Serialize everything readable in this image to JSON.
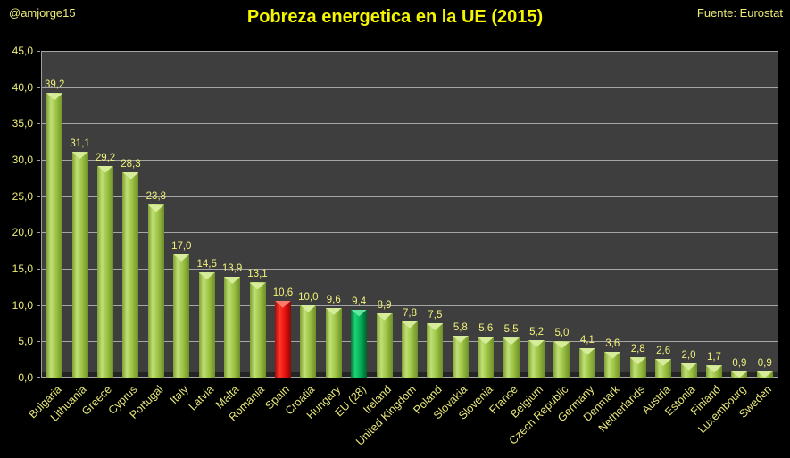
{
  "header": {
    "credit": "@amjorge15",
    "title": "Pobreza energetica en la UE (2015)",
    "source": "Fuente: Eurostat"
  },
  "colors": {
    "page_bg": "#000000",
    "plot_bg": "#3e3e3e",
    "gridline": "#a6a6a6",
    "axis_line": "#9f9f9f",
    "title_text": "#f5f500",
    "label_text": "#ecec79",
    "bar_styles": {
      "default": {
        "edge_left": "#7d9f31",
        "highlight": "#c0e076",
        "mid": "#9cc243",
        "edge_right": "#6d8f2a",
        "cap": "#d7ec9b"
      },
      "spain": {
        "edge_left": "#a30b0b",
        "highlight": "#ff392b",
        "mid": "#ea0f0f",
        "edge_right": "#8a0808",
        "cap": "#ff7a6a"
      },
      "eu": {
        "edge_left": "#007a3c",
        "highlight": "#21d276",
        "mid": "#00ab53",
        "edge_right": "#00602f",
        "cap": "#62e6a0"
      }
    }
  },
  "chart_data": {
    "type": "bar",
    "title": "Pobreza energetica en la UE (2015)",
    "xlabel": "",
    "ylabel": "",
    "ylim": [
      0,
      45
    ],
    "grid": true,
    "legend": false,
    "categories": [
      "Bulgaria",
      "Lithuania",
      "Greece",
      "Cyprus",
      "Portugal",
      "Italy",
      "Latvia",
      "Malta",
      "Romania",
      "Spain",
      "Croatia",
      "Hungary",
      "EU (28)",
      "Ireland",
      "United Kingdom",
      "Poland",
      "Slovakia",
      "Slovenia",
      "France",
      "Belgium",
      "Czech Republic",
      "Germany",
      "Denmark",
      "Netherlands",
      "Austria",
      "Estonia",
      "Finland",
      "Luxembourg",
      "Sweden"
    ],
    "values": [
      39.2,
      31.1,
      29.2,
      28.3,
      23.8,
      17.0,
      14.5,
      13.9,
      13.1,
      10.6,
      10.0,
      9.6,
      9.4,
      8.9,
      7.8,
      7.5,
      5.8,
      5.6,
      5.5,
      5.2,
      5.0,
      4.1,
      3.6,
      2.8,
      2.6,
      2.0,
      1.7,
      0.9,
      0.9
    ],
    "value_labels": [
      "39,2",
      "31,1",
      "29,2",
      "28,3",
      "23,8",
      "17,0",
      "14,5",
      "13,9",
      "13,1",
      "10,6",
      "10,0",
      "9,6",
      "9,4",
      "8,9",
      "7,8",
      "7,5",
      "5,8",
      "5,6",
      "5,5",
      "5,2",
      "5,0",
      "4,1",
      "3,6",
      "2,8",
      "2,6",
      "2,0",
      "1,7",
      "0,9",
      "0,9"
    ],
    "bar_styles": [
      "default",
      "default",
      "default",
      "default",
      "default",
      "default",
      "default",
      "default",
      "default",
      "spain",
      "default",
      "default",
      "eu",
      "default",
      "default",
      "default",
      "default",
      "default",
      "default",
      "default",
      "default",
      "default",
      "default",
      "default",
      "default",
      "default",
      "default",
      "default",
      "default"
    ],
    "yticks": [
      {
        "value": 45,
        "label": "45,0"
      },
      {
        "value": 40,
        "label": "40,0"
      },
      {
        "value": 35,
        "label": "35,0"
      },
      {
        "value": 30,
        "label": "30,0"
      },
      {
        "value": 25,
        "label": "25,0"
      },
      {
        "value": 20,
        "label": "20,0"
      },
      {
        "value": 15,
        "label": "15,0"
      },
      {
        "value": 10,
        "label": "10,0"
      },
      {
        "value": 5,
        "label": "5,0"
      },
      {
        "value": 0,
        "label": "0,0"
      }
    ]
  }
}
